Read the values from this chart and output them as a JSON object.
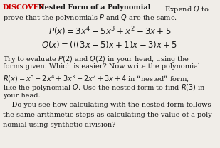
{
  "bg_color": "#f0ede8",
  "discover_color": "#cc0000",
  "text_color": "#1a1a1a",
  "fontsize_body": 7.0,
  "fontsize_eq": 8.5,
  "line1_discover": "DISCOVER:",
  "line1_bold": "  Nested Form of a Polynomial",
  "line1_normal": "   Expand $Q$ to",
  "line2": "prove that the polynomials $P$ and $Q$ are the same.",
  "P_eq": "$P(x) = 3x^4 - 5x^3 + x^2 - 3x + 5$",
  "Q_eq": "$Q(x) = (((3x - 5)x + 1)x - 3)x + 5$",
  "body_line1": "Try to evaluate $P(2)$ and $Q(2)$ in your head, using the",
  "body_line2": "forms given. Which is easier? Now write the polynomial",
  "body_line3": "$R(x) = x^5 - 2x^4 + 3x^3 - 2x^2 + 3x + 4$ in “nested” form,",
  "body_line4": "like the polynomial $Q$. Use the nested form to find $R(3)$ in",
  "body_line5": "your head.",
  "body_line6": "    Do you see how calculating with the nested form follows",
  "body_line7": "the same arithmetic steps as calculating the value of a poly-",
  "body_line8": "nomial using synthetic division?"
}
